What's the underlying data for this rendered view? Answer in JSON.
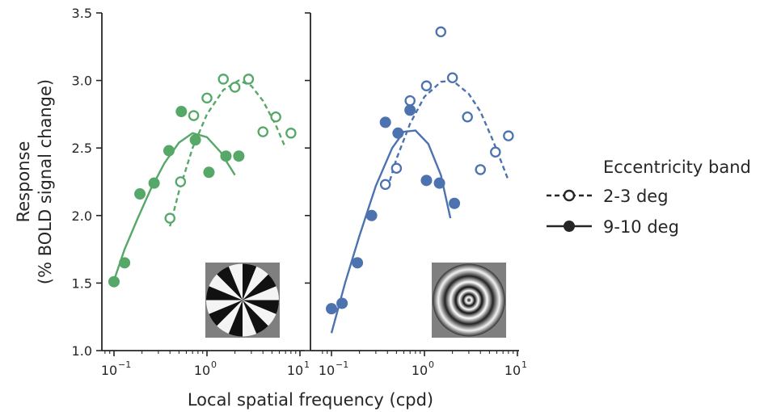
{
  "figure": {
    "ylabel_line1": "Response",
    "ylabel_line2": "(% BOLD signal change)",
    "xlabel": "Local spatial frequency (cpd)"
  },
  "colors": {
    "green": "#55a868",
    "blue": "#4c72b0",
    "axis": "#262626"
  },
  "legend": {
    "title": "Eccentricity band",
    "items": [
      {
        "label": "2-3 deg",
        "marker": "open-circle",
        "linestyle": "dashed"
      },
      {
        "label": "9-10 deg",
        "marker": "filled-circle",
        "linestyle": "solid"
      }
    ]
  },
  "chart_data": [
    {
      "type": "scatter",
      "panel": "left",
      "color": "#55a868",
      "stimulus_icon": "pinwheel-stimulus-icon",
      "xscale": "log",
      "xlim": [
        0.08,
        10
      ],
      "ylim": [
        1.0,
        3.5
      ],
      "xtick_values": [
        0.1,
        1,
        10
      ],
      "xtick_base": "10",
      "xtick_exponents": [
        "−1",
        "0",
        "1"
      ],
      "ytick_labels": [
        "1.0",
        "1.5",
        "2.0",
        "2.5",
        "3.0",
        "3.5"
      ],
      "series": [
        {
          "name": "2-3 deg",
          "style": "open-dashed",
          "points": [
            [
              0.4,
              1.98
            ],
            [
              0.52,
              2.25
            ],
            [
              0.72,
              2.74
            ],
            [
              1.0,
              2.87
            ],
            [
              1.5,
              3.01
            ],
            [
              2.0,
              2.95
            ],
            [
              2.8,
              3.01
            ],
            [
              4.0,
              2.62
            ],
            [
              5.5,
              2.73
            ],
            [
              8.0,
              2.61
            ]
          ],
          "fit": [
            [
              0.4,
              1.92
            ],
            [
              0.5,
              2.18
            ],
            [
              0.7,
              2.5
            ],
            [
              1.0,
              2.75
            ],
            [
              1.5,
              2.93
            ],
            [
              2.2,
              3.0
            ],
            [
              3.0,
              2.96
            ],
            [
              4.0,
              2.85
            ],
            [
              5.5,
              2.67
            ],
            [
              7.0,
              2.5
            ]
          ]
        },
        {
          "name": "9-10 deg",
          "style": "filled-solid",
          "points": [
            [
              0.1,
              1.51
            ],
            [
              0.13,
              1.65
            ],
            [
              0.19,
              2.16
            ],
            [
              0.27,
              2.24
            ],
            [
              0.39,
              2.48
            ],
            [
              0.53,
              2.77
            ],
            [
              0.75,
              2.56
            ],
            [
              1.05,
              2.32
            ],
            [
              1.6,
              2.44
            ],
            [
              2.2,
              2.44
            ]
          ],
          "fit": [
            [
              0.1,
              1.52
            ],
            [
              0.13,
              1.75
            ],
            [
              0.18,
              1.98
            ],
            [
              0.25,
              2.2
            ],
            [
              0.35,
              2.39
            ],
            [
              0.5,
              2.54
            ],
            [
              0.7,
              2.61
            ],
            [
              1.0,
              2.58
            ],
            [
              1.4,
              2.47
            ],
            [
              2.0,
              2.3
            ]
          ]
        }
      ]
    },
    {
      "type": "scatter",
      "panel": "right",
      "color": "#4c72b0",
      "stimulus_icon": "concentric-rings-stimulus-icon",
      "xscale": "log",
      "xlim": [
        0.08,
        10
      ],
      "ylim": [
        1.0,
        3.5
      ],
      "xtick_values": [
        0.1,
        1,
        10
      ],
      "xtick_base": "10",
      "xtick_exponents": [
        "−1",
        "0",
        "1"
      ],
      "series": [
        {
          "name": "2-3 deg",
          "style": "open-dashed",
          "points": [
            [
              0.38,
              2.23
            ],
            [
              0.5,
              2.35
            ],
            [
              0.7,
              2.85
            ],
            [
              1.05,
              2.96
            ],
            [
              1.5,
              3.36
            ],
            [
              2.0,
              3.02
            ],
            [
              2.9,
              2.73
            ],
            [
              4.0,
              2.34
            ],
            [
              5.8,
              2.47
            ],
            [
              8.0,
              2.59
            ]
          ],
          "fit": [
            [
              0.4,
              2.2
            ],
            [
              0.5,
              2.42
            ],
            [
              0.7,
              2.68
            ],
            [
              1.0,
              2.88
            ],
            [
              1.5,
              2.99
            ],
            [
              2.0,
              3.0
            ],
            [
              3.0,
              2.9
            ],
            [
              4.0,
              2.77
            ],
            [
              5.5,
              2.55
            ],
            [
              8.0,
              2.26
            ]
          ]
        },
        {
          "name": "9-10 deg",
          "style": "filled-solid",
          "points": [
            [
              0.1,
              1.31
            ],
            [
              0.13,
              1.35
            ],
            [
              0.19,
              1.65
            ],
            [
              0.27,
              2.0
            ],
            [
              0.38,
              2.69
            ],
            [
              0.52,
              2.61
            ],
            [
              0.7,
              2.78
            ],
            [
              1.05,
              2.26
            ],
            [
              1.45,
              2.24
            ],
            [
              2.1,
              2.09
            ]
          ],
          "fit": [
            [
              0.1,
              1.13
            ],
            [
              0.14,
              1.5
            ],
            [
              0.2,
              1.85
            ],
            [
              0.3,
              2.22
            ],
            [
              0.45,
              2.5
            ],
            [
              0.6,
              2.62
            ],
            [
              0.8,
              2.63
            ],
            [
              1.1,
              2.53
            ],
            [
              1.5,
              2.3
            ],
            [
              1.9,
              1.98
            ]
          ]
        }
      ]
    }
  ]
}
